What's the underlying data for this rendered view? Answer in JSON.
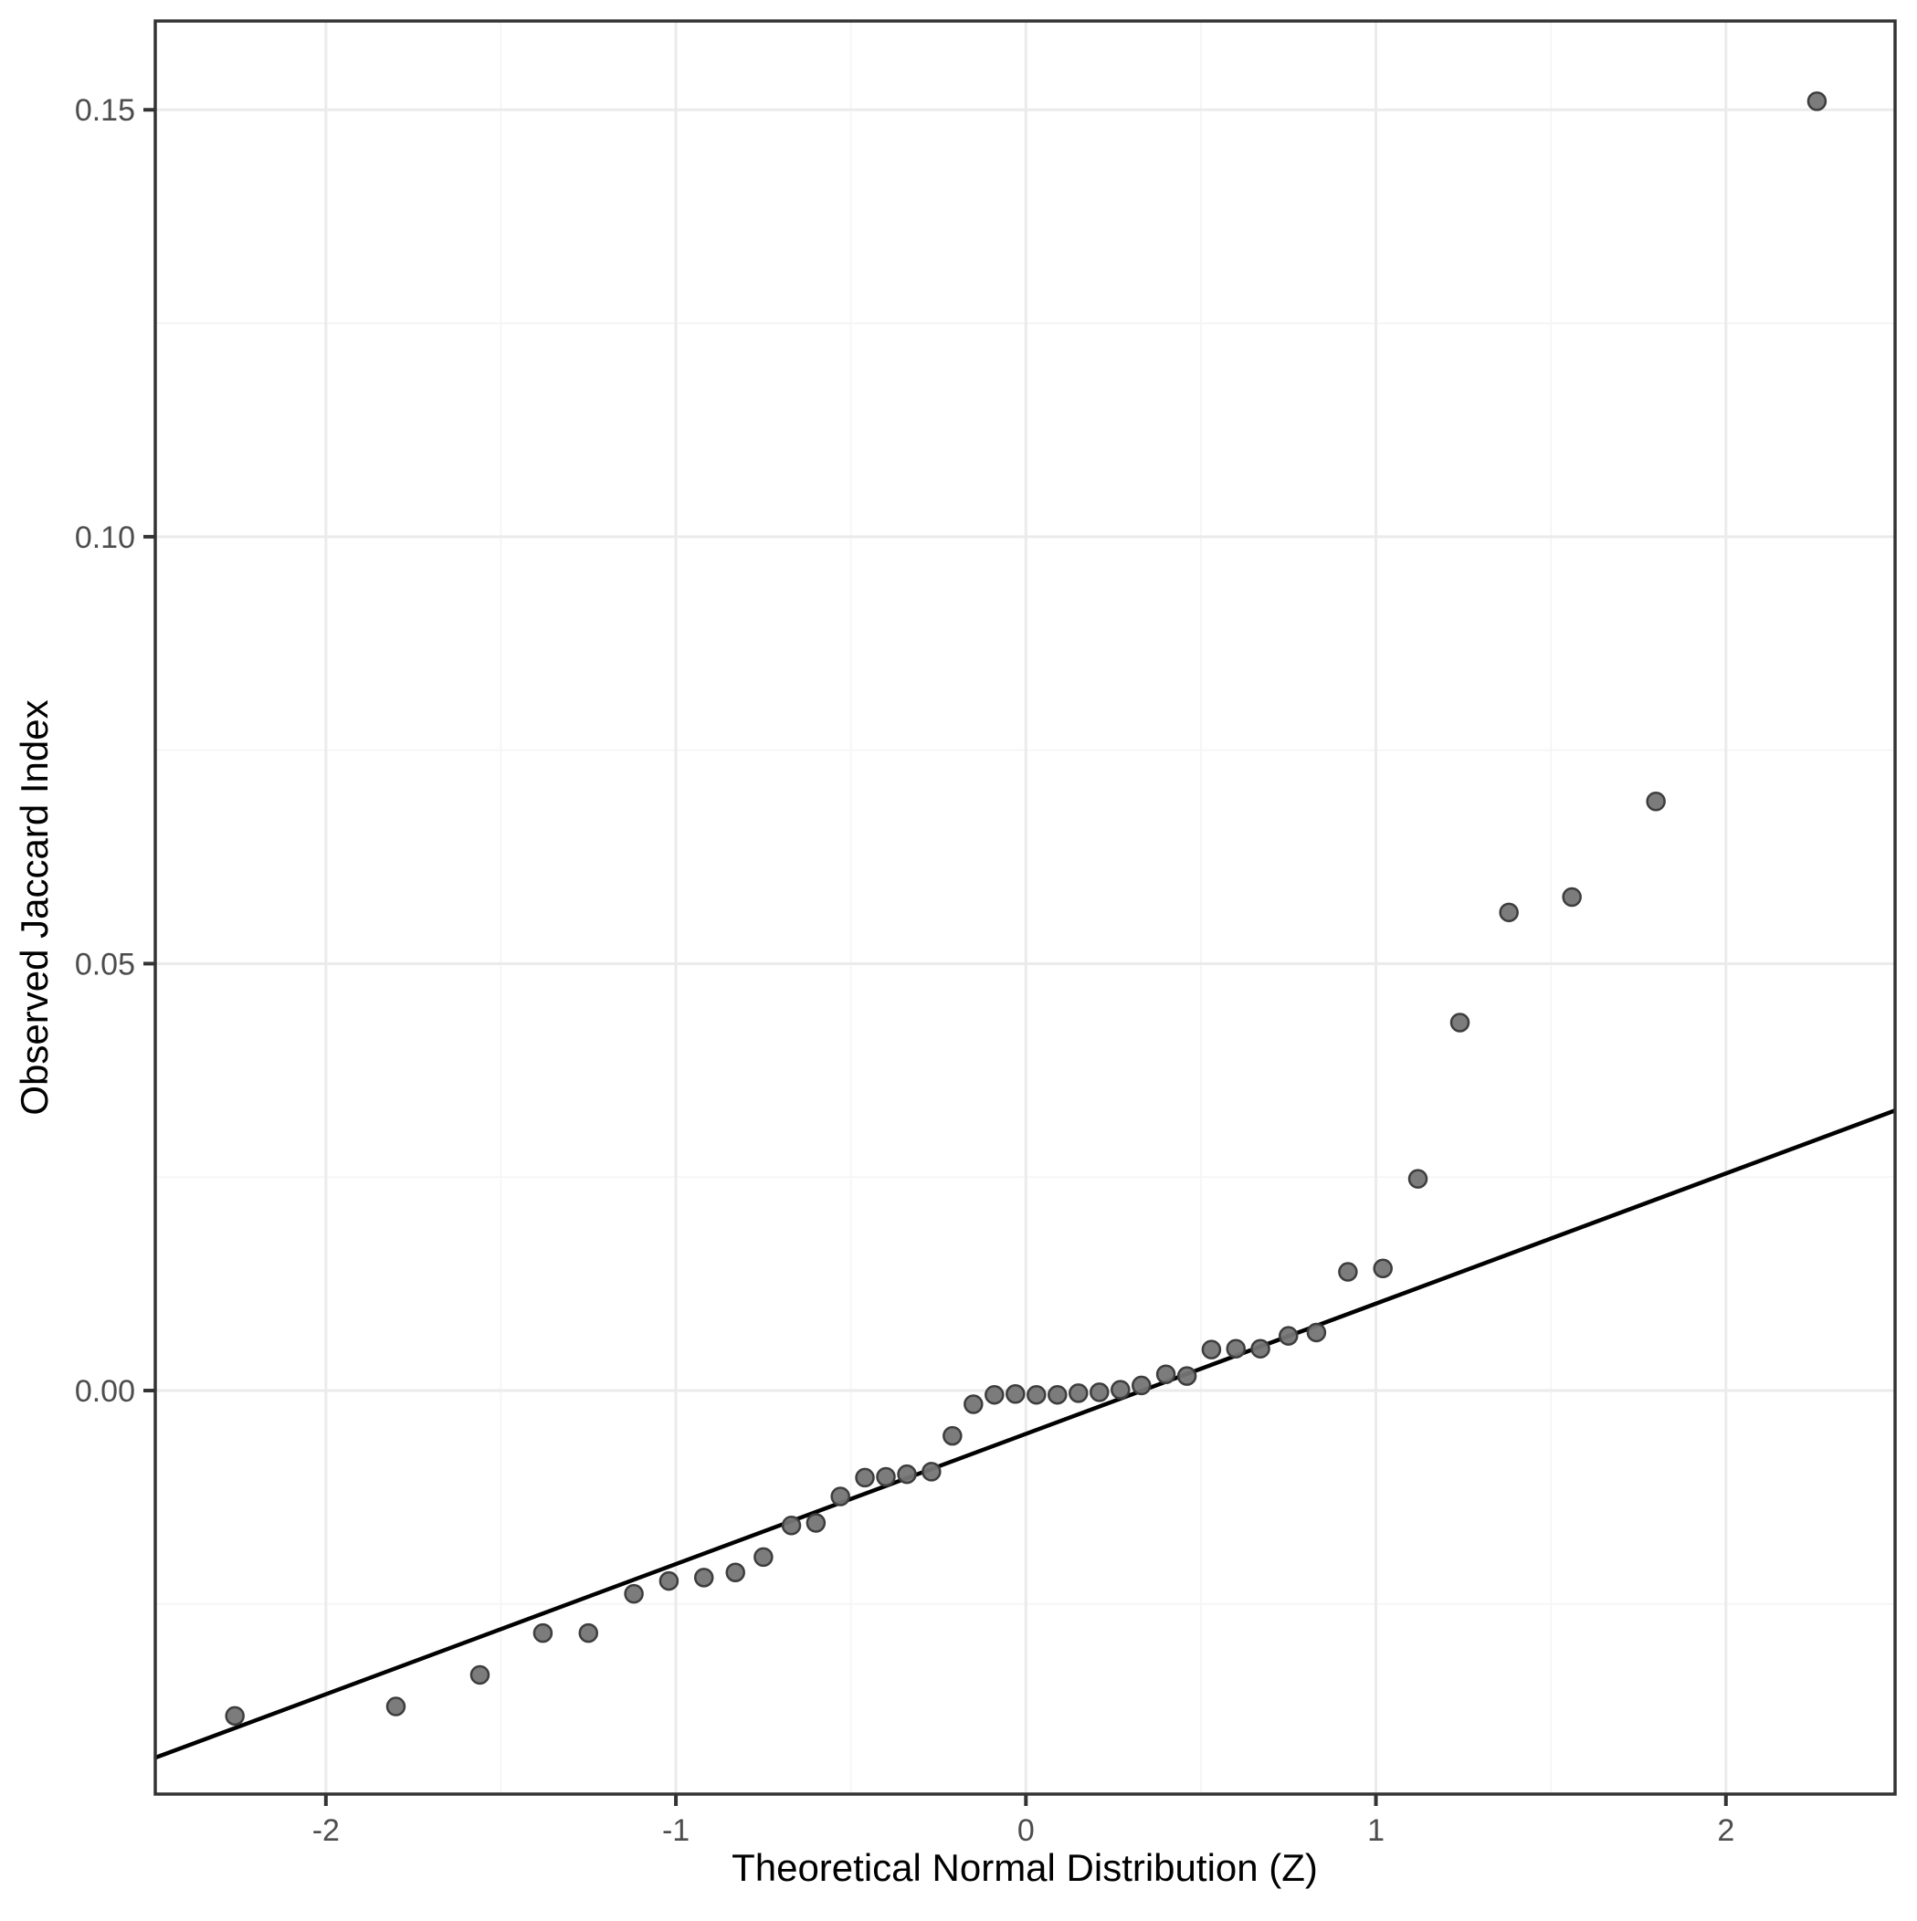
{
  "chart_data": {
    "type": "scatter",
    "title": "",
    "xlabel": "Theoretical Normal Distribution (Z)",
    "ylabel": "Observed Jaccard Index",
    "xlim": [
      -2.4875,
      2.4833
    ],
    "ylim": [
      -0.04726,
      0.1604
    ],
    "grid": "major+minor",
    "legend_position": "none",
    "x_ticks": {
      "major": [
        {
          "value": -2,
          "label": "-2"
        },
        {
          "value": -1,
          "label": "-1"
        },
        {
          "value": 0,
          "label": "0"
        },
        {
          "value": 1,
          "label": "1"
        },
        {
          "value": 2,
          "label": "2"
        }
      ],
      "minor": [
        -1.5,
        -0.5,
        0.5,
        1.5
      ]
    },
    "y_ticks": {
      "major": [
        {
          "value": 0.0,
          "label": "0.00"
        },
        {
          "value": 0.05,
          "label": "0.05"
        },
        {
          "value": 0.1,
          "label": "0.10"
        },
        {
          "value": 0.15,
          "label": "0.15"
        }
      ],
      "minor": [
        -0.025,
        0.025,
        0.075,
        0.125
      ]
    },
    "series": [
      {
        "name": "sample-quantiles",
        "type": "points",
        "points": [
          [
            -2.26,
            -0.0381
          ],
          [
            -1.8,
            -0.037
          ],
          [
            -1.56,
            -0.0333
          ],
          [
            -1.38,
            -0.0284
          ],
          [
            -1.25,
            -0.0284
          ],
          [
            -1.12,
            -0.0238
          ],
          [
            -1.02,
            -0.0223
          ],
          [
            -0.92,
            -0.0219
          ],
          [
            -0.83,
            -0.0213
          ],
          [
            -0.75,
            -0.0195
          ],
          [
            -0.67,
            -0.0158
          ],
          [
            -0.6,
            -0.0155
          ],
          [
            -0.53,
            -0.0124
          ],
          [
            -0.46,
            -0.0102
          ],
          [
            -0.4,
            -0.0101
          ],
          [
            -0.34,
            -0.0098
          ],
          [
            -0.27,
            -0.0095
          ],
          [
            -0.21,
            -0.0053
          ],
          [
            -0.15,
            -0.0016
          ],
          [
            -0.09,
            -0.0005
          ],
          [
            -0.03,
            -0.0004
          ],
          [
            0.03,
            -0.0005
          ],
          [
            0.09,
            -0.0005
          ],
          [
            0.15,
            -0.0003
          ],
          [
            0.21,
            -0.0002
          ],
          [
            0.27,
            0.0001
          ],
          [
            0.33,
            0.0006
          ],
          [
            0.4,
            0.0019
          ],
          [
            0.46,
            0.0017
          ],
          [
            0.53,
            0.0048
          ],
          [
            0.6,
            0.0049
          ],
          [
            0.67,
            0.0049
          ],
          [
            0.75,
            0.0064
          ],
          [
            0.83,
            0.0068
          ],
          [
            0.92,
            0.0139
          ],
          [
            1.02,
            0.0143
          ],
          [
            1.12,
            0.0248
          ],
          [
            1.24,
            0.0431
          ],
          [
            1.38,
            0.056
          ],
          [
            1.56,
            0.0578
          ],
          [
            1.8,
            0.069
          ],
          [
            2.26,
            0.151
          ]
        ]
      },
      {
        "name": "qq-reference-line",
        "type": "line",
        "points": [
          [
            -2.4875,
            -0.043
          ],
          [
            2.4833,
            0.0328
          ]
        ]
      }
    ],
    "colors": {
      "background": "#ffffff",
      "panel_background": "#ffffff",
      "panel_border": "#333333",
      "grid_major": "#ebebeb",
      "grid_minor": "#f5f5f5",
      "point_fill": "#757575",
      "point_stroke": "#3d3d3d",
      "reference_line": "#000000",
      "tick_mark": "#333333",
      "tick_label": "#4d4d4d",
      "axis_title": "#000000"
    }
  }
}
